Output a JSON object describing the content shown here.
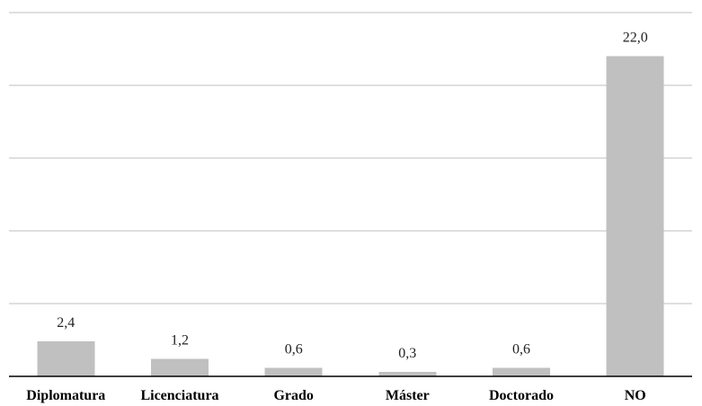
{
  "chart_data": {
    "type": "bar",
    "categories": [
      "Diplomatura",
      "Licenciatura",
      "Grado",
      "Máster",
      "Doctorado",
      "NO"
    ],
    "values": [
      2.4,
      1.2,
      0.6,
      0.3,
      0.6,
      22.0
    ],
    "data_labels": [
      "2,4",
      "1,2",
      "0,6",
      "0,3",
      "0,6",
      "22,0"
    ],
    "title": "",
    "xlabel": "",
    "ylabel": "",
    "ylim": [
      0,
      25
    ],
    "y_tick_labels_visible": false,
    "grid": true,
    "legend": "none",
    "bar_color": "#c0c0c0",
    "gridline_color": "#bfbfbf",
    "axis_color": "#000000"
  }
}
